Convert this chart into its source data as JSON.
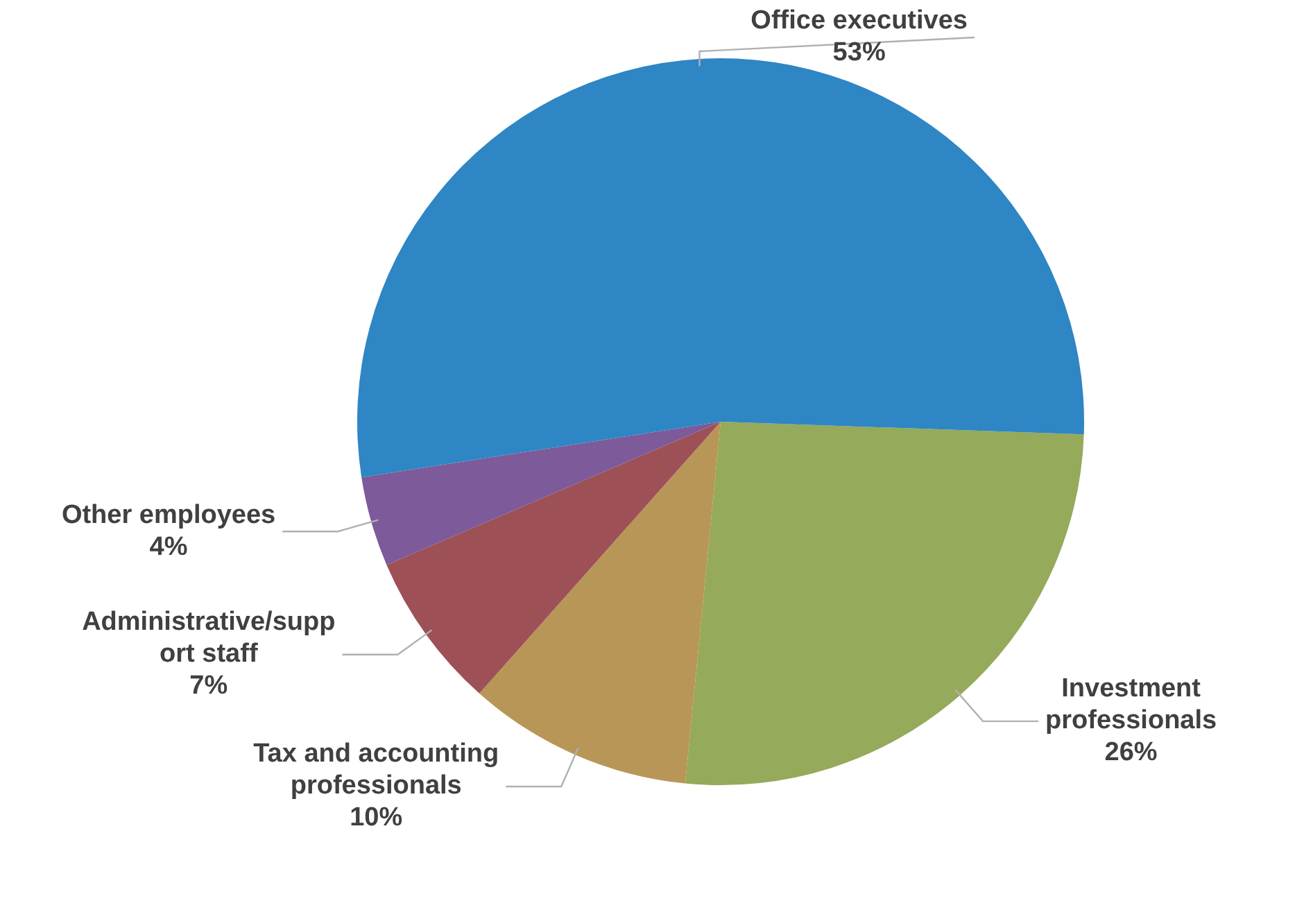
{
  "chart_data": {
    "type": "pie",
    "categories": [
      "Investment professionals",
      "Tax and accounting professionals",
      "Administrative/support staff",
      "Other employees",
      "Office executives"
    ],
    "values": [
      26,
      10,
      7,
      4,
      53
    ],
    "value_labels": [
      "26%",
      "10%",
      "7%",
      "4%",
      "53%"
    ],
    "colors": [
      "#95aa5a",
      "#b89657",
      "#9e5057",
      "#7d5a9a",
      "#2e86c4"
    ],
    "legend": false
  }
}
